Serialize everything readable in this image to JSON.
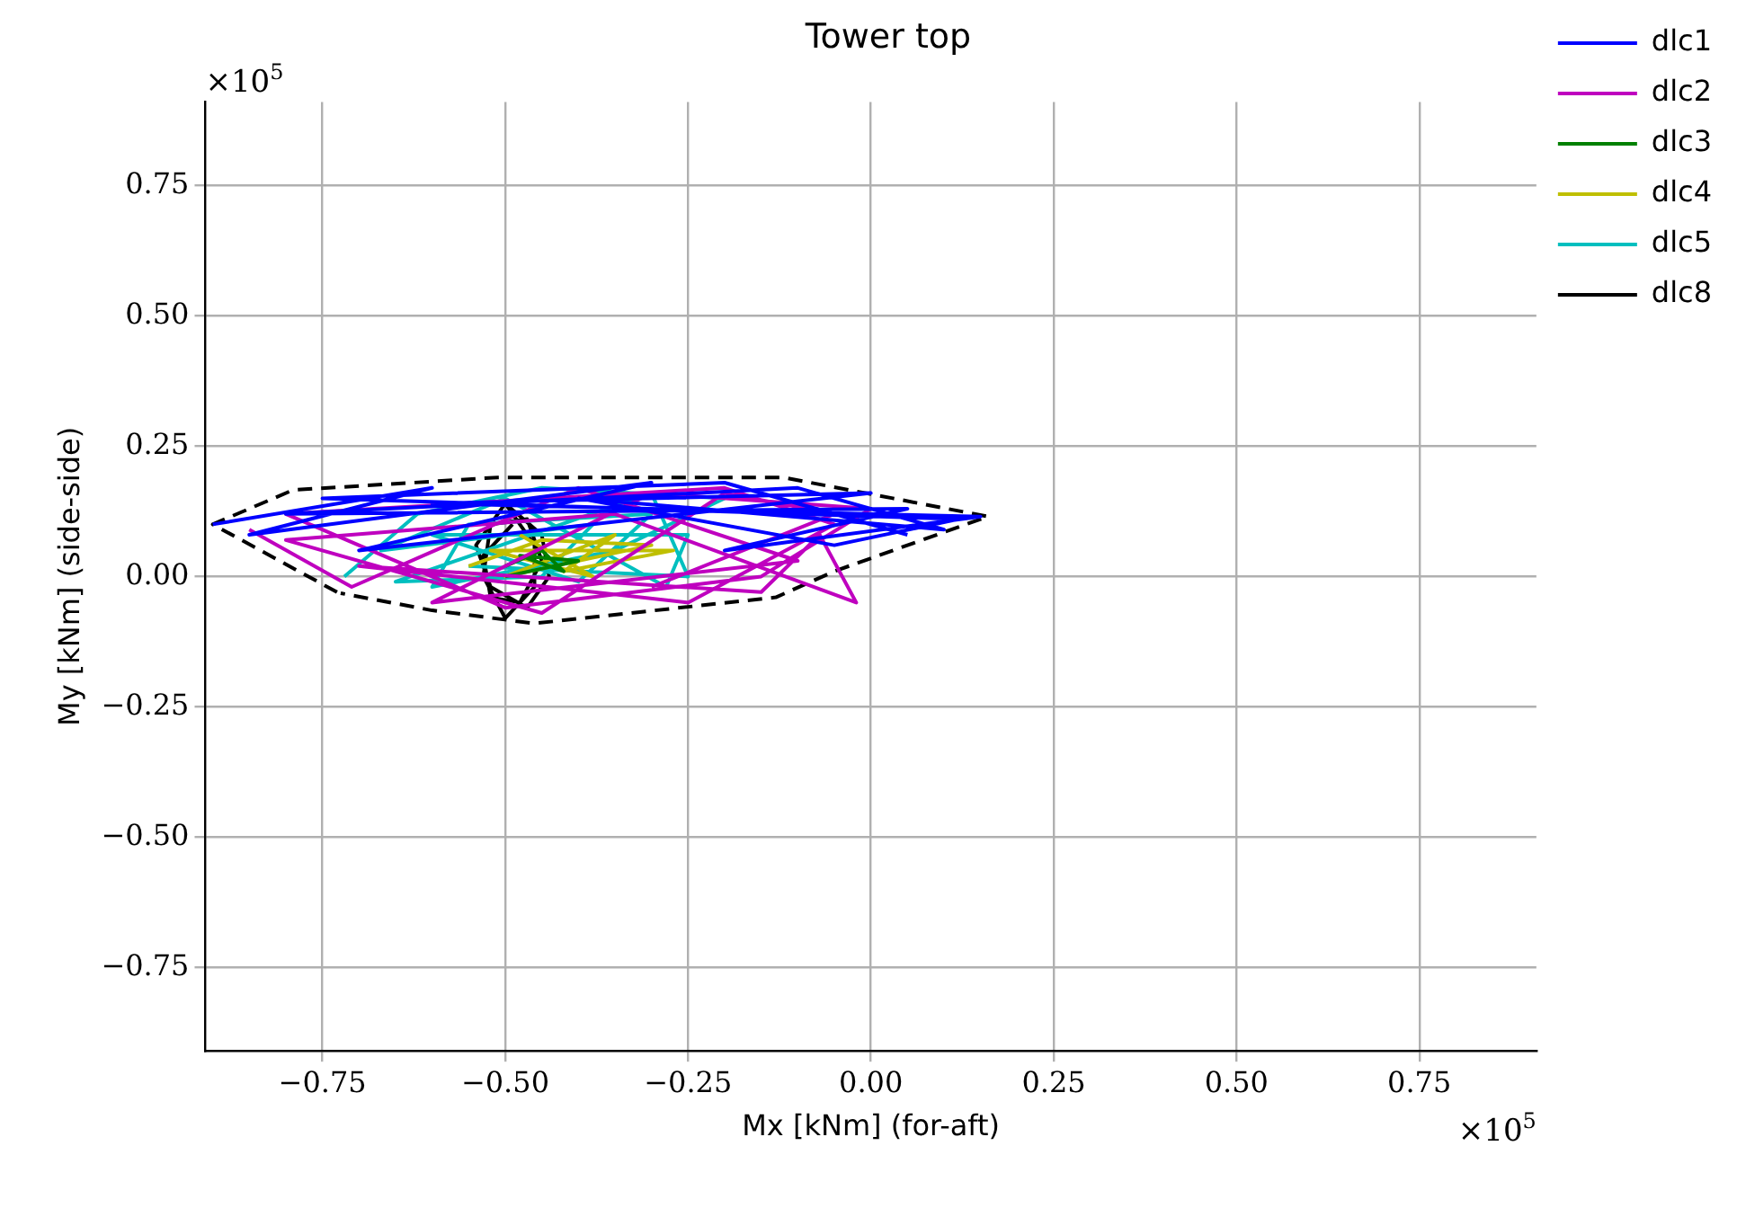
{
  "chart_data": {
    "type": "line",
    "title": "Tower top",
    "xlabel": "Mx [kNm] (for-aft)",
    "ylabel": "My [kNm] (side-side)",
    "annotations": [
      "×10$^{5}$",
      "×10$^{5}$"
    ],
    "xlim": [
      -0.91,
      0.91
    ],
    "ylim": [
      -0.91,
      0.91
    ],
    "xticks": [
      {
        "value": -0.75,
        "label": "−0.75"
      },
      {
        "value": -0.5,
        "label": "−0.50"
      },
      {
        "value": -0.25,
        "label": "−0.25"
      },
      {
        "value": 0,
        "label": "0.00"
      },
      {
        "value": 0.25,
        "label": "0.25"
      },
      {
        "value": 0.5,
        "label": "0.50"
      },
      {
        "value": 0.75,
        "label": "0.75"
      }
    ],
    "yticks": [
      {
        "value": -0.75,
        "label": "−0.75"
      },
      {
        "value": -0.5,
        "label": "−0.50"
      },
      {
        "value": -0.25,
        "label": "−0.25"
      },
      {
        "value": 0,
        "label": "0.00"
      },
      {
        "value": 0.25,
        "label": "0.25"
      },
      {
        "value": 0.5,
        "label": "0.50"
      },
      {
        "value": 0.75,
        "label": "0.75"
      }
    ],
    "grid": true,
    "legend": "top right",
    "marker": "none",
    "line_style": "solid",
    "series": [
      {
        "name": "dlc1",
        "color": "#0000ff",
        "x": [
          -0.9,
          -0.6,
          -0.85,
          -0.3,
          -0.7,
          0.0,
          -0.6,
          0.15,
          -0.2,
          0.05,
          -0.8,
          -0.1,
          0.1,
          -0.4,
          -0.05,
          0.12,
          -0.75,
          -0.2,
          0.05
        ],
        "values": [
          0.1,
          0.17,
          0.08,
          0.18,
          0.05,
          0.16,
          0.14,
          0.115,
          0.05,
          0.13,
          0.12,
          0.17,
          0.09,
          0.15,
          0.06,
          0.11,
          0.15,
          0.18,
          0.08
        ]
      },
      {
        "name": "dlc2",
        "color": "#bf00bf",
        "x": [
          -0.85,
          -0.71,
          -0.4,
          -0.1,
          -0.6,
          -0.3,
          0.0,
          -0.15,
          -0.5,
          -0.8,
          -0.2,
          -0.05,
          -0.25,
          -0.7,
          -0.15,
          -0.07,
          -0.02,
          -0.35,
          -0.8,
          -0.45,
          -0.2,
          -0.05,
          -0.3
        ],
        "values": [
          0.09,
          -0.02,
          0.17,
          0.03,
          -0.05,
          0.16,
          0.13,
          0.0,
          -0.06,
          0.12,
          0.17,
          0.1,
          -0.05,
          0.02,
          -0.03,
          0.08,
          -0.05,
          0.12,
          0.07,
          -0.07,
          0.16,
          0.12,
          -0.02
        ]
      },
      {
        "name": "dlc3",
        "color": "#008000",
        "x": [
          -0.5,
          -0.45,
          -0.42,
          -0.48,
          -0.4,
          -0.5
        ],
        "values": [
          0.02,
          0.05,
          0.01,
          0.04,
          0.03,
          0.0
        ]
      },
      {
        "name": "dlc4",
        "color": "#bfbf00",
        "x": [
          -0.55,
          -0.45,
          -0.3,
          -0.5,
          -0.35,
          -0.42,
          -0.27,
          -0.52,
          -0.38,
          -0.48
        ],
        "values": [
          0.02,
          0.07,
          0.06,
          0.0,
          0.08,
          0.01,
          0.05,
          0.05,
          0.0,
          0.08
        ]
      },
      {
        "name": "dlc5",
        "color": "#00bfbf",
        "x": [
          -0.72,
          -0.62,
          -0.45,
          -0.2,
          -0.35,
          -0.6,
          -0.55,
          -0.3,
          -0.4,
          -0.6,
          -0.25,
          -0.28,
          -0.5,
          -0.67,
          -0.38,
          -0.45,
          -0.65,
          -0.3,
          -0.25,
          -0.55
        ],
        "values": [
          0.0,
          0.12,
          0.17,
          0.15,
          0.05,
          -0.02,
          0.1,
          0.12,
          -0.01,
          0.08,
          0.08,
          -0.02,
          0.15,
          0.05,
          0.1,
          0.0,
          -0.01,
          0.16,
          0.0,
          0.02
        ]
      },
      {
        "name": "dlc8",
        "color": "#000000",
        "x": [
          -0.5,
          -0.45,
          -0.44,
          -0.47,
          -0.52,
          -0.54,
          -0.5,
          -0.46,
          -0.46,
          -0.5,
          -0.53,
          -0.52,
          -0.47,
          -0.45,
          -0.48,
          -0.52,
          -0.53,
          -0.49
        ],
        "values": [
          0.14,
          0.08,
          0.0,
          -0.06,
          -0.02,
          0.06,
          0.14,
          0.06,
          -0.02,
          -0.08,
          0.0,
          0.1,
          0.11,
          0.03,
          -0.05,
          -0.04,
          0.04,
          0.1
        ]
      },
      {
        "type": "line",
        "color": "#000000",
        "line_style": "dashed",
        "x": [
          -0.73,
          -0.9,
          -0.79,
          -0.51,
          -0.12,
          0.03,
          0.16,
          -0.05,
          -0.13,
          -0.46,
          -0.6,
          -0.725
        ],
        "values": [
          -0.03,
          0.1,
          0.166,
          0.19,
          0.19,
          0.15,
          0.115,
          0.01,
          -0.04,
          -0.09,
          -0.065,
          -0.032
        ]
      }
    ]
  }
}
